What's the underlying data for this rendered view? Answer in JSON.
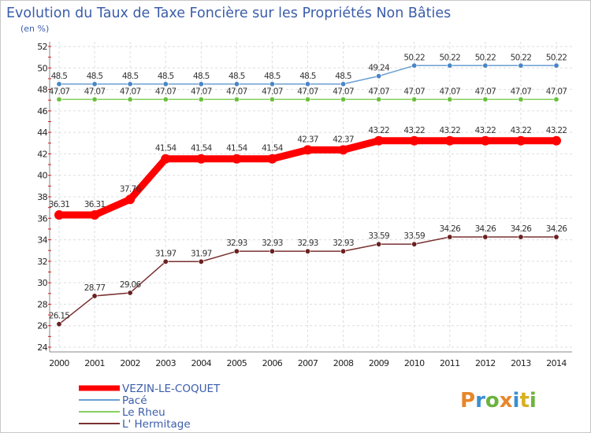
{
  "chart_data": {
    "type": "line",
    "title": "Evolution du Taux de Taxe Foncière sur les Propriétés Non Bâties",
    "subtitle": "(en %)",
    "xlabel": "",
    "ylabel": "(en %)",
    "ylim": [
      24,
      52
    ],
    "yticks": [
      24,
      26,
      28,
      30,
      32,
      34,
      36,
      38,
      40,
      42,
      44,
      46,
      48,
      50,
      52
    ],
    "grid": true,
    "legend_position": "bottom-left",
    "categories": [
      "2000",
      "2001",
      "2002",
      "2003",
      "2004",
      "2005",
      "2006",
      "2007",
      "2008",
      "2009",
      "2010",
      "2011",
      "2012",
      "2013",
      "2014"
    ],
    "series": [
      {
        "name": "Pacé",
        "color": "#6a9fd4",
        "marker": "#4a86c5",
        "values": [
          48.5,
          48.5,
          48.5,
          48.5,
          48.5,
          48.5,
          48.5,
          48.5,
          48.5,
          49.24,
          50.22,
          50.22,
          50.22,
          50.22,
          50.22
        ],
        "labels": [
          "48.5",
          "48.5",
          "48.5",
          "48.5",
          "48.5",
          "48.5",
          "48.5",
          "48.5",
          "48.5",
          "49.24",
          "50.22",
          "50.22",
          "50.22",
          "50.22",
          "50.22"
        ]
      },
      {
        "name": "Le Rheu",
        "color": "#88d060",
        "marker": "#6cc040",
        "values": [
          47.07,
          47.07,
          47.07,
          47.07,
          47.07,
          47.07,
          47.07,
          47.07,
          47.07,
          47.07,
          47.07,
          47.07,
          47.07,
          47.07,
          47.07
        ],
        "labels": [
          "47.07",
          "47.07",
          "47.07",
          "47.07",
          "47.07",
          "47.07",
          "47.07",
          "47.07",
          "47.07",
          "47.07",
          "47.07",
          "47.07",
          "47.07",
          "47.07",
          "47.07"
        ]
      },
      {
        "name": "VEZIN-LE-COQUET",
        "color": "#ff0000",
        "marker": "#ff0000",
        "values": [
          36.31,
          36.31,
          37.76,
          41.54,
          41.54,
          41.54,
          41.54,
          42.37,
          42.37,
          43.22,
          43.22,
          43.22,
          43.22,
          43.22,
          43.22
        ],
        "labels": [
          "36.31",
          "36.31",
          "37.76",
          "41.54",
          "41.54",
          "41.54",
          "41.54",
          "42.37",
          "42.37",
          "43.22",
          "43.22",
          "43.22",
          "43.22",
          "43.22",
          "43.22"
        ]
      },
      {
        "name": "L' Hermitage",
        "color": "#7a3030",
        "marker": "#6a2020",
        "values": [
          26.15,
          28.77,
          29.06,
          31.97,
          31.97,
          32.93,
          32.93,
          32.93,
          32.93,
          33.59,
          33.59,
          34.26,
          34.26,
          34.26,
          34.26
        ],
        "labels": [
          "26.15",
          "28.77",
          "29.06",
          "31.97",
          "31.97",
          "32.93",
          "32.93",
          "32.93",
          "32.93",
          "33.59",
          "33.59",
          "34.26",
          "34.26",
          "34.26",
          "34.26"
        ]
      }
    ],
    "legend": [
      "VEZIN-LE-COQUET",
      "Pacé",
      "Le Rheu",
      "L' Hermitage"
    ]
  },
  "brand": {
    "letters": [
      "P",
      "r",
      "o",
      "x",
      "i",
      "t",
      "i"
    ],
    "colors": [
      "#e8862a",
      "#3a8fd0",
      "#6cb33e",
      "#e8862a",
      "#3a8fd0",
      "#d8b020",
      "#6cb33e"
    ]
  }
}
